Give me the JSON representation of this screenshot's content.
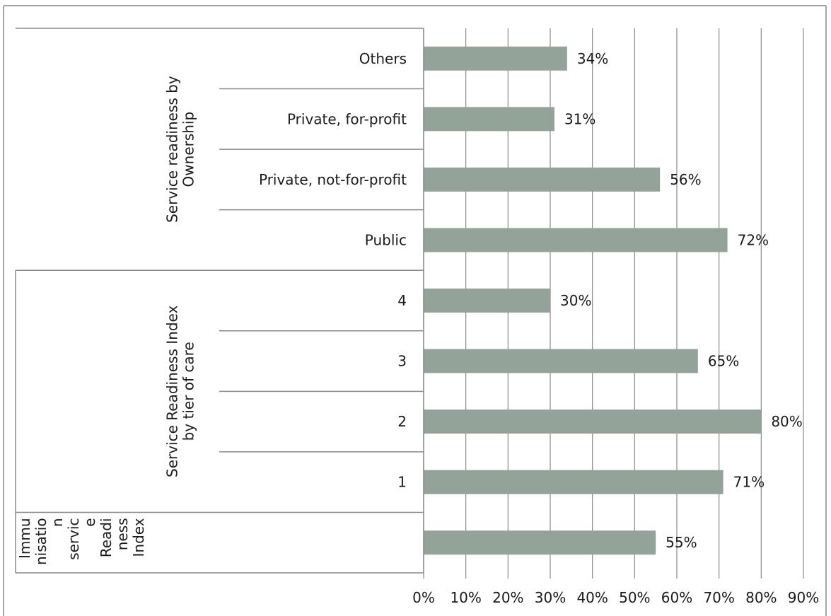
{
  "chart_data": {
    "type": "bar",
    "orientation": "horizontal",
    "categories": [
      "Others",
      "Private, for-profit",
      "Private, not-for-profit",
      "Public",
      "4",
      "3",
      "2",
      "1",
      ""
    ],
    "groups": [
      {
        "label_lines": [
          "Service readiness by",
          "Ownership"
        ],
        "categories": [
          "Others",
          "Private, for-profit",
          "Private, not-for-profit",
          "Public"
        ]
      },
      {
        "label_lines": [
          "Service Readiness Index",
          "by tier of care"
        ],
        "categories": [
          "4",
          "3",
          "2",
          "1"
        ]
      },
      {
        "label_lines": [
          "Immu",
          "nisatio",
          "n",
          "servic",
          "e",
          "Readi",
          "ness",
          "Index"
        ],
        "categories": [
          ""
        ]
      }
    ],
    "values": [
      34,
      31,
      56,
      72,
      30,
      65,
      80,
      71,
      55
    ],
    "data_labels": [
      "34%",
      "31%",
      "56%",
      "72%",
      "30%",
      "65%",
      "80%",
      "71%",
      "55%"
    ],
    "xlim": [
      0,
      90
    ],
    "x_ticks": [
      0,
      10,
      20,
      30,
      40,
      50,
      60,
      70,
      80,
      90
    ],
    "x_tick_labels": [
      "0%",
      "10%",
      "20%",
      "30%",
      "40%",
      "50%",
      "60%",
      "70%",
      "80%",
      "90%"
    ],
    "grid": "vertical",
    "legend": "none",
    "title": "",
    "xlabel": "",
    "ylabel": "",
    "colors": {
      "bar": "#94a399",
      "grid": "#8a8a8a",
      "text": "#1a1a1a"
    }
  }
}
